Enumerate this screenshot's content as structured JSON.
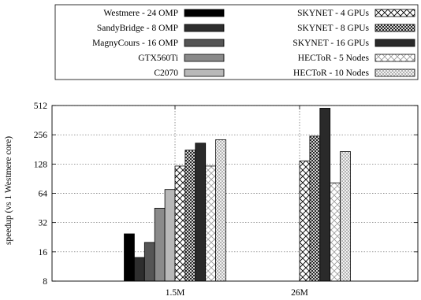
{
  "chart_data": {
    "type": "bar",
    "categories": [
      "1.5M",
      "26M"
    ],
    "ylabel": "speedup (vs 1 Westmere core)",
    "xlabel": "",
    "yscale": "log2",
    "ylim": [
      8,
      512
    ],
    "yticks": [
      8,
      16,
      32,
      64,
      128,
      256,
      512
    ],
    "grid": "dotted, on tick marks",
    "legend_placement": "top, framed box, two columns",
    "series": [
      {
        "name": "Westmere - 24 OMP",
        "fill": "solid",
        "color": "#000000",
        "values": [
          24.5,
          null
        ]
      },
      {
        "name": "SandyBridge - 8 OMP",
        "fill": "solid",
        "color": "#2e2e2e",
        "values": [
          14,
          null
        ]
      },
      {
        "name": "MagnyCours - 16 OMP",
        "fill": "solid",
        "color": "#555555",
        "values": [
          20,
          null
        ]
      },
      {
        "name": "GTX560Ti",
        "fill": "solid",
        "color": "#8a8a8a",
        "values": [
          45,
          null
        ]
      },
      {
        "name": "C2070",
        "fill": "solid",
        "color": "#b8b8b8",
        "values": [
          70,
          null
        ]
      },
      {
        "name": "SKYNET - 4 GPUs",
        "fill": "crosshatch",
        "color": "#000000",
        "values": [
          122,
          138
        ]
      },
      {
        "name": "SKYNET - 8 GPUs",
        "fill": "crosshatch-dense",
        "color": "#000000",
        "values": [
          178,
          248
        ]
      },
      {
        "name": "SKYNET - 16 GPUs",
        "fill": "solid",
        "color": "#2a2a2a",
        "values": [
          210,
          480
        ]
      },
      {
        "name": "HECToR - 5 Nodes",
        "fill": "crosshatch-light",
        "color": "#888888",
        "values": [
          122,
          82
        ]
      },
      {
        "name": "HECToR - 10 Nodes",
        "fill": "crosshatch-dense-light",
        "color": "#888888",
        "values": [
          228,
          172
        ]
      }
    ]
  }
}
